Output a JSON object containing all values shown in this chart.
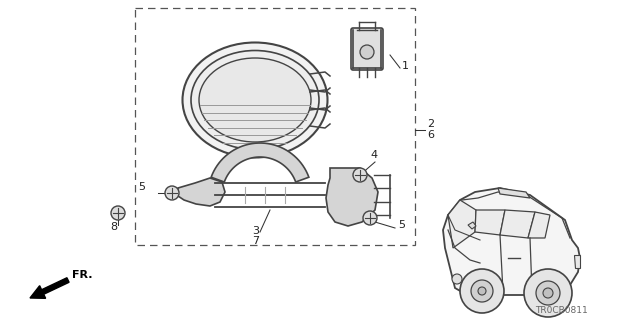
{
  "bg_color": "#ffffff",
  "line_color": "#444444",
  "text_color": "#222222",
  "part_code": "TR0CB0811",
  "fig_width": 6.4,
  "fig_height": 3.2,
  "dpi": 100
}
